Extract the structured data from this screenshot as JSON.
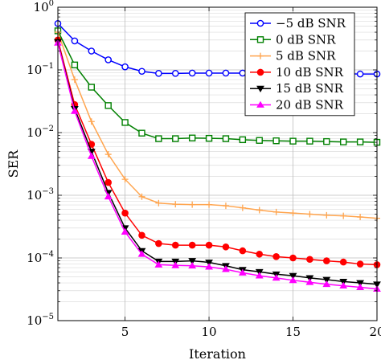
{
  "chart_data": {
    "type": "line",
    "title": "",
    "xlabel": "Iteration",
    "ylabel": "SER",
    "xlim": [
      1,
      20
    ],
    "ylim": [
      1e-05,
      1
    ],
    "yscale": "log",
    "grid": true,
    "legend_position": "top-right",
    "x_ticks": [
      5,
      10,
      15,
      20
    ],
    "x_tick_labels": [
      "5",
      "10",
      "15",
      "20"
    ],
    "y_ticks": [
      1e-05,
      0.0001,
      0.001,
      0.01,
      0.1,
      1
    ],
    "y_tick_labels": [
      {
        "base": "10",
        "exp": "−5"
      },
      {
        "base": "10",
        "exp": "−4"
      },
      {
        "base": "10",
        "exp": "−3"
      },
      {
        "base": "10",
        "exp": "−2"
      },
      {
        "base": "10",
        "exp": "−1"
      },
      {
        "base": "10",
        "exp": "0"
      }
    ],
    "x": [
      1,
      2,
      3,
      4,
      5,
      6,
      7,
      8,
      9,
      10,
      11,
      12,
      13,
      14,
      15,
      16,
      17,
      18,
      19,
      20
    ],
    "series": [
      {
        "name": "−5 dB SNR",
        "color": "#0000ff",
        "marker": "circle-open",
        "values": [
          0.55,
          0.29,
          0.2,
          0.145,
          0.112,
          0.095,
          0.088,
          0.088,
          0.089,
          0.089,
          0.089,
          0.089,
          0.088,
          0.088,
          0.088,
          0.088,
          0.088,
          0.087,
          0.086,
          0.086
        ]
      },
      {
        "name": "0 dB SNR",
        "color": "#008000",
        "marker": "square-open",
        "values": [
          0.42,
          0.12,
          0.053,
          0.027,
          0.0145,
          0.0098,
          0.008,
          0.008,
          0.0082,
          0.0081,
          0.008,
          0.0077,
          0.0075,
          0.0074,
          0.0073,
          0.0073,
          0.0072,
          0.0071,
          0.0071,
          0.007
        ]
      },
      {
        "name": "5 dB SNR",
        "color": "#ffa54f",
        "marker": "plus",
        "values": [
          0.4,
          0.07,
          0.015,
          0.0045,
          0.0018,
          0.00095,
          0.00075,
          0.00072,
          0.00071,
          0.00071,
          0.00068,
          0.00063,
          0.00058,
          0.00054,
          0.00052,
          0.0005,
          0.00048,
          0.00047,
          0.00045,
          0.00043
        ]
      },
      {
        "name": "10 dB SNR",
        "color": "#ff0000",
        "marker": "circle-filled",
        "values": [
          0.3,
          0.028,
          0.0065,
          0.0016,
          0.00052,
          0.00023,
          0.00017,
          0.00016,
          0.00016,
          0.00016,
          0.00015,
          0.00013,
          0.000115,
          0.000105,
          0.0001,
          9.5e-05,
          9e-05,
          8.6e-05,
          8e-05,
          7.8e-05
        ]
      },
      {
        "name": "15 dB SNR",
        "color": "#000000",
        "marker": "triangle-down-filled",
        "values": [
          0.28,
          0.024,
          0.005,
          0.0011,
          0.0003,
          0.00013,
          8.8e-05,
          8.8e-05,
          9e-05,
          8.5e-05,
          7.5e-05,
          6.5e-05,
          6e-05,
          5.5e-05,
          5.2e-05,
          4.8e-05,
          4.5e-05,
          4.2e-05,
          4e-05,
          3.8e-05
        ]
      },
      {
        "name": "20 dB SNR",
        "color": "#ff00ff",
        "marker": "triangle-up-filled",
        "values": [
          0.27,
          0.022,
          0.0042,
          0.00095,
          0.00026,
          0.000115,
          7.8e-05,
          7.6e-05,
          7.5e-05,
          7.2e-05,
          6.6e-05,
          5.8e-05,
          5.2e-05,
          4.8e-05,
          4.4e-05,
          4.1e-05,
          3.8e-05,
          3.6e-05,
          3.4e-05,
          3.2e-05
        ]
      }
    ]
  }
}
